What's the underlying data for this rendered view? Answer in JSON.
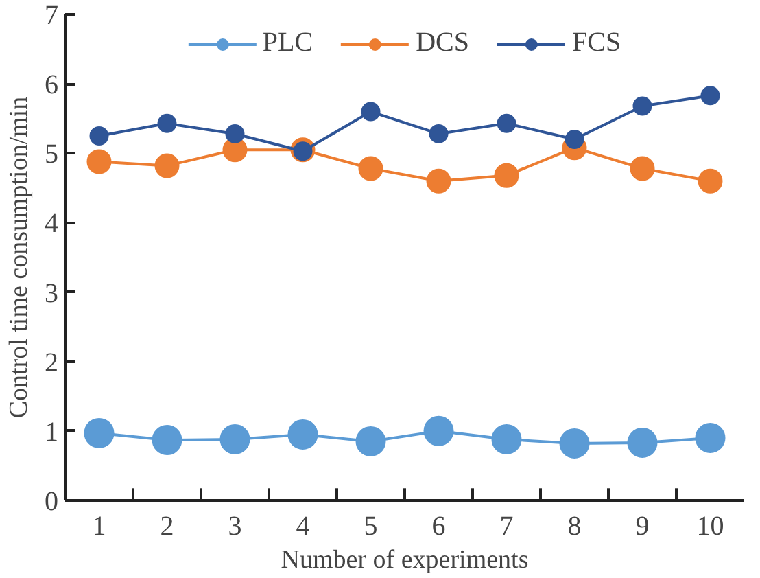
{
  "chart_data": {
    "type": "line",
    "xlabel": "Number of experiments",
    "ylabel": "Control time consumption/min",
    "categories": [
      "1",
      "2",
      "3",
      "4",
      "5",
      "6",
      "7",
      "8",
      "9",
      "10"
    ],
    "series": [
      {
        "name": "PLC",
        "color": "#5b9bd5",
        "values": [
          0.97,
          0.87,
          0.88,
          0.95,
          0.85,
          1.0,
          0.88,
          0.82,
          0.83,
          0.9
        ]
      },
      {
        "name": "DCS",
        "color": "#ed7d31",
        "values": [
          4.88,
          4.82,
          5.05,
          5.05,
          4.78,
          4.6,
          4.68,
          5.08,
          4.78,
          4.6
        ]
      },
      {
        "name": "FCS",
        "color": "#2f5597",
        "values": [
          5.25,
          5.43,
          5.28,
          5.03,
          5.6,
          5.28,
          5.43,
          5.2,
          5.68,
          5.83
        ]
      }
    ],
    "ylim": [
      0,
      7
    ],
    "yticks": [
      0,
      1,
      2,
      3,
      4,
      5,
      6,
      7
    ],
    "grid": false,
    "legend": "top",
    "marker": "circle",
    "line_style": "solid"
  }
}
